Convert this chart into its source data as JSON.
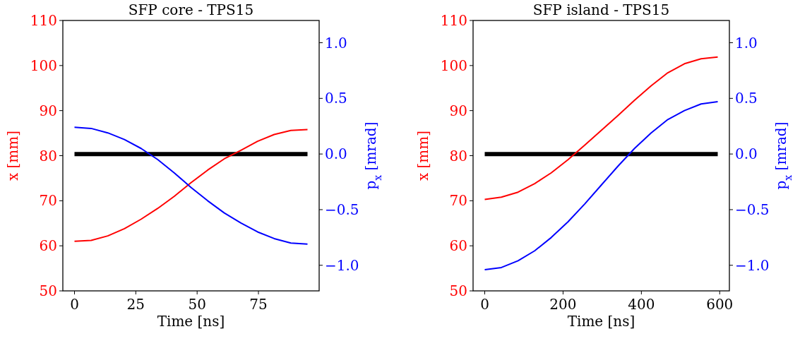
{
  "chart_data": [
    {
      "type": "line",
      "title": "SFP core - TPS15",
      "xlabel": "Time [ns]",
      "ylabel": "x [mm]",
      "y2label": "p$_{x}$ [mrad]",
      "x": [
        0,
        6.79,
        13.57,
        20.36,
        27.14,
        33.93,
        40.71,
        47.5,
        54.29,
        61.07,
        67.86,
        74.64,
        81.43,
        88.21,
        95
      ],
      "series": [
        {
          "color": "#ff0000",
          "values": [
            61.0,
            61.2,
            62.2,
            63.8,
            65.9,
            68.3,
            71.0,
            74.0,
            76.8,
            79.3,
            81.2,
            83.2,
            84.7,
            85.6,
            85.8
          ]
        },
        {
          "color": "#0000ff",
          "axis": "y2",
          "values": [
            0.24,
            0.23,
            0.19,
            0.13,
            0.05,
            -0.05,
            -0.17,
            -0.3,
            -0.42,
            -0.53,
            -0.62,
            -0.7,
            -0.76,
            -0.8,
            -0.81
          ]
        }
      ],
      "xlim": [
        -4.75,
        99.75
      ],
      "xticks": [
        0,
        25,
        50,
        75
      ],
      "ylim": [
        50,
        110
      ],
      "yticks": [
        50,
        60,
        70,
        80,
        90,
        100,
        110
      ],
      "y2lim": [
        -1.23,
        1.2
      ],
      "y2ticks": [
        {
          "value": -1,
          "label": "−1.0"
        },
        {
          "value": -0.5,
          "label": "−0.5"
        },
        {
          "value": 0,
          "label": "0.0"
        },
        {
          "value": 0.5,
          "label": "0.5"
        },
        {
          "value": 1,
          "label": "1.0"
        }
      ],
      "ref_lines": [
        {
          "axis": "y2",
          "value": 0,
          "color": "#000000"
        }
      ]
    },
    {
      "type": "line",
      "title": "SFP island - TPS15",
      "xlabel": "Time [ns]",
      "ylabel": "x [mm]",
      "y2label": "p$_{x}$ [mrad]",
      "x": [
        0,
        42.5,
        85,
        127.5,
        170,
        212.5,
        255,
        297.5,
        340,
        382.5,
        425,
        467.5,
        510,
        552.5,
        595
      ],
      "series": [
        {
          "color": "#ff0000",
          "values": [
            70.3,
            70.8,
            71.9,
            73.8,
            76.2,
            79.1,
            82.3,
            85.6,
            88.9,
            92.3,
            95.5,
            98.4,
            100.4,
            101.5,
            101.9
          ]
        },
        {
          "color": "#0000ff",
          "axis": "y2",
          "values": [
            -1.04,
            -1.02,
            -0.96,
            -0.87,
            -0.75,
            -0.61,
            -0.45,
            -0.28,
            -0.11,
            0.05,
            0.19,
            0.31,
            0.39,
            0.45,
            0.47
          ]
        }
      ],
      "xlim": [
        -29.75,
        624.75
      ],
      "xticks": [
        0,
        200,
        400,
        600
      ],
      "ylim": [
        50,
        110
      ],
      "yticks": [
        50,
        60,
        70,
        80,
        90,
        100,
        110
      ],
      "y2lim": [
        -1.23,
        1.2
      ],
      "y2ticks": [
        {
          "value": -1,
          "label": "−1.0"
        },
        {
          "value": -0.5,
          "label": "−0.5"
        },
        {
          "value": 0,
          "label": "0.0"
        },
        {
          "value": 0.5,
          "label": "0.5"
        },
        {
          "value": 1,
          "label": "1.0"
        }
      ],
      "ref_lines": [
        {
          "axis": "y2",
          "value": 0,
          "color": "#000000"
        }
      ]
    }
  ]
}
